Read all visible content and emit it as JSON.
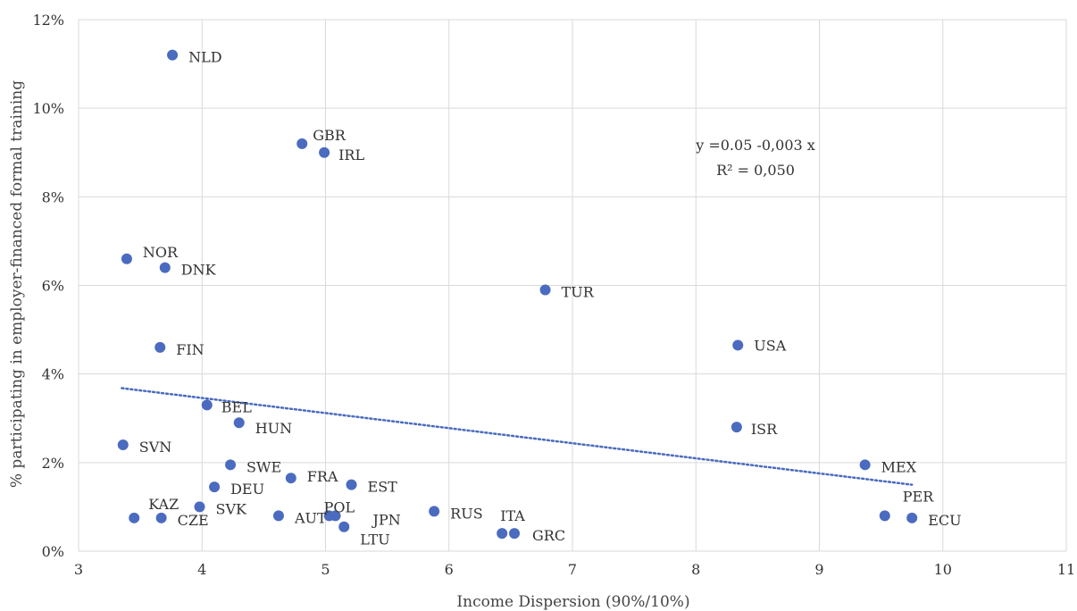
{
  "chart_data": {
    "type": "scatter",
    "xlabel": "Income Dispersion (90%/10%)",
    "ylabel": "% participating in employer-financed formal training",
    "xlim": [
      3,
      11
    ],
    "ylim": [
      0,
      12
    ],
    "x_ticks": [
      "3",
      "4",
      "5",
      "6",
      "7",
      "8",
      "9",
      "10",
      "11"
    ],
    "y_ticks": [
      "0%",
      "2%",
      "4%",
      "6%",
      "8%",
      "10%",
      "12%"
    ],
    "grid": true,
    "point_color": "#4a6bbf",
    "trendline": {
      "style": "dotted",
      "color": "#4a6bbf",
      "x_start": 3.35,
      "y_start": 3.68,
      "x_end": 9.75,
      "y_end": 1.5,
      "equation": "y =0.05 -0,003 x",
      "r_squared": "R² = 0,050"
    },
    "points": [
      {
        "label": "NLD",
        "x": 3.76,
        "y": 11.2
      },
      {
        "label": "GBR",
        "x": 4.81,
        "y": 9.2
      },
      {
        "label": "IRL",
        "x": 4.99,
        "y": 9.0
      },
      {
        "label": "NOR",
        "x": 3.39,
        "y": 6.6
      },
      {
        "label": "DNK",
        "x": 3.7,
        "y": 6.4
      },
      {
        "label": "TUR",
        "x": 6.78,
        "y": 5.9
      },
      {
        "label": "FIN",
        "x": 3.66,
        "y": 4.6
      },
      {
        "label": "USA",
        "x": 8.34,
        "y": 4.65
      },
      {
        "label": "BEL",
        "x": 4.04,
        "y": 3.3
      },
      {
        "label": "HUN",
        "x": 4.3,
        "y": 2.9
      },
      {
        "label": "ISR",
        "x": 8.33,
        "y": 2.8
      },
      {
        "label": "SVN",
        "x": 3.36,
        "y": 2.4
      },
      {
        "label": "SWE",
        "x": 4.23,
        "y": 1.95
      },
      {
        "label": "MEX",
        "x": 9.37,
        "y": 1.95
      },
      {
        "label": "FRA",
        "x": 4.72,
        "y": 1.65
      },
      {
        "label": "EST",
        "x": 5.21,
        "y": 1.5
      },
      {
        "label": "DEU",
        "x": 4.1,
        "y": 1.45
      },
      {
        "label": "SVK",
        "x": 3.98,
        "y": 1.0
      },
      {
        "label": "RUS",
        "x": 5.88,
        "y": 0.9
      },
      {
        "label": "AUT",
        "x": 4.62,
        "y": 0.8
      },
      {
        "label": "POL",
        "x": 5.03,
        "y": 0.8
      },
      {
        "label": "JPN",
        "x": 5.08,
        "y": 0.8
      },
      {
        "label": "PER",
        "x": 9.53,
        "y": 0.8
      },
      {
        "label": "KAZ",
        "x": 3.45,
        "y": 0.75
      },
      {
        "label": "CZE",
        "x": 3.67,
        "y": 0.75
      },
      {
        "label": "ECU",
        "x": 9.75,
        "y": 0.75
      },
      {
        "label": "LTU",
        "x": 5.15,
        "y": 0.55
      },
      {
        "label": "ITA",
        "x": 6.43,
        "y": 0.4
      },
      {
        "label": "GRC",
        "x": 6.53,
        "y": 0.4
      }
    ]
  }
}
